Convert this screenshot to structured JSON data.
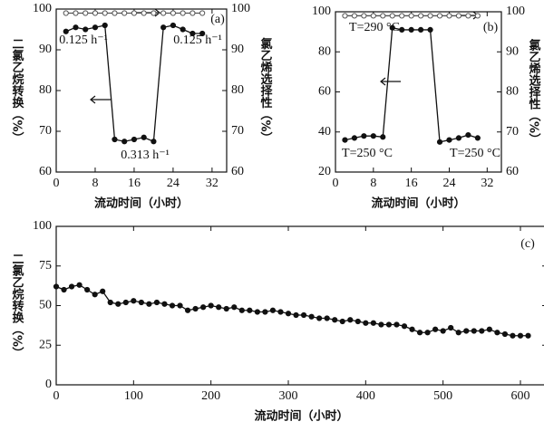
{
  "chart_data": [
    {
      "type": "line",
      "x_label": "流动时间（小时）",
      "y_label": "二氯乙烷转换（%）",
      "y2_label": "氯乙烯选择性（%）",
      "annotations": [
        "(a)",
        "0.125 h⁻¹",
        "0.125 h⁻¹",
        "0.313 h⁻¹"
      ],
      "xlim": [
        0,
        35
      ],
      "xticks": [
        0,
        8,
        16,
        24,
        32
      ],
      "ylim": [
        60,
        100
      ],
      "yticks": [
        60,
        70,
        80,
        90,
        100
      ],
      "y2lim": [
        60,
        100
      ],
      "y2ticks": [
        60,
        70,
        80,
        90,
        100
      ],
      "x": [
        2,
        4,
        6,
        8,
        10,
        12,
        14,
        16,
        18,
        20,
        22,
        24,
        26,
        28,
        30
      ],
      "series": [
        {
          "color": "#111111",
          "marker": "filled",
          "values": [
            94.5,
            95.5,
            95,
            95.5,
            96,
            68,
            67.5,
            68,
            68.5,
            67.5,
            95.5,
            96,
            95,
            94,
            94
          ]
        },
        {
          "color": "#555555",
          "marker": "open",
          "axis": "y2",
          "values": [
            99,
            99,
            99,
            99,
            99,
            99,
            99,
            99,
            99,
            99,
            99,
            99,
            99,
            99,
            99
          ]
        }
      ]
    },
    {
      "type": "line",
      "x_label": "流动时间（小时）",
      "y2_label": "氯乙烯选择性（%）",
      "annotations": [
        "(b)",
        "T=290 °C",
        "T=250 °C",
        "T=250 °C"
      ],
      "xlim": [
        0,
        35
      ],
      "xticks": [
        0,
        8,
        16,
        24,
        32
      ],
      "ylim": [
        20,
        100
      ],
      "yticks": [
        20,
        40,
        60,
        80,
        100
      ],
      "y2lim": [
        60,
        100
      ],
      "y2ticks": [
        60,
        70,
        80,
        90,
        100
      ],
      "x": [
        2,
        4,
        6,
        8,
        10,
        12,
        14,
        16,
        18,
        20,
        22,
        24,
        26,
        28,
        30
      ],
      "series": [
        {
          "color": "#111111",
          "marker": "filled",
          "values": [
            36,
            37,
            38,
            38,
            37.5,
            92,
            91,
            91,
            91,
            91,
            35,
            36,
            37,
            38.5,
            37
          ]
        },
        {
          "color": "#555555",
          "marker": "open",
          "axis": "y2",
          "values": [
            99,
            99,
            99,
            99,
            99,
            99,
            99,
            99,
            99,
            99,
            99,
            99,
            99,
            99,
            99
          ]
        }
      ]
    },
    {
      "type": "line",
      "x_label": "流动时间（小时）",
      "y_label": "二氯乙烷转换（%）",
      "annotations": [
        "(c)"
      ],
      "xlim": [
        0,
        634
      ],
      "xticks": [
        0,
        100,
        200,
        300,
        400,
        500,
        600
      ],
      "ylim": [
        0,
        100
      ],
      "yticks": [
        0,
        25,
        50,
        75,
        100
      ],
      "x": [
        0,
        10,
        20,
        30,
        40,
        50,
        60,
        70,
        80,
        90,
        100,
        110,
        120,
        130,
        140,
        150,
        160,
        170,
        180,
        190,
        200,
        210,
        220,
        230,
        240,
        250,
        260,
        270,
        280,
        290,
        300,
        310,
        320,
        330,
        340,
        350,
        360,
        370,
        380,
        390,
        400,
        410,
        420,
        430,
        440,
        450,
        460,
        470,
        480,
        490,
        500,
        510,
        520,
        530,
        540,
        550,
        560,
        570,
        580,
        590,
        600,
        610
      ],
      "series": [
        {
          "color": "#111111",
          "marker": "filled",
          "values": [
            62,
            60,
            62,
            63,
            60,
            57,
            59,
            52,
            51,
            52,
            53,
            52,
            51,
            52,
            51,
            50,
            50,
            47,
            48,
            49,
            50,
            49,
            48,
            49,
            47,
            47,
            46,
            46,
            47,
            46,
            45,
            44,
            44,
            43,
            42,
            42,
            41,
            40,
            41,
            40,
            39,
            39,
            38,
            38,
            38,
            37,
            35,
            33,
            33,
            35,
            34,
            36,
            33,
            34,
            34,
            34,
            35,
            33,
            32,
            31,
            31,
            31
          ]
        }
      ]
    }
  ]
}
